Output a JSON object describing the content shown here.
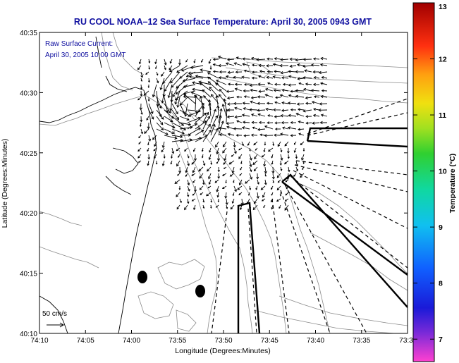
{
  "title": "RU COOL  NOAA–12  Sea Surface Temperature:  April 30, 2005 0943 GMT",
  "legend": {
    "line1": "Raw Surface Current:",
    "line2": "April 30, 2005 10:00 GMT"
  },
  "scale_label": "50 cm/s",
  "x_axis": {
    "label": "Longitude (Degrees:Minutes)",
    "ticks": [
      "74:10",
      "74:05",
      "74:00",
      "73:55",
      "73:50",
      "73:45",
      "73:40",
      "73:35",
      "73:3"
    ]
  },
  "y_axis": {
    "label": "Latitude (Degrees:Minutes)",
    "ticks": [
      "40:35",
      "40:30",
      "40:25",
      "40:20",
      "40:15",
      "40:10"
    ]
  },
  "colorbar": {
    "label": "Temperature (°C)",
    "ticks": [
      "13",
      "12",
      "11",
      "10",
      "9",
      "8",
      "7"
    ],
    "min": 6.6,
    "max": 13
  },
  "colors": {
    "title": "#1010a0",
    "coast": "#000000",
    "bathymetry": "#8a8a8a"
  }
}
